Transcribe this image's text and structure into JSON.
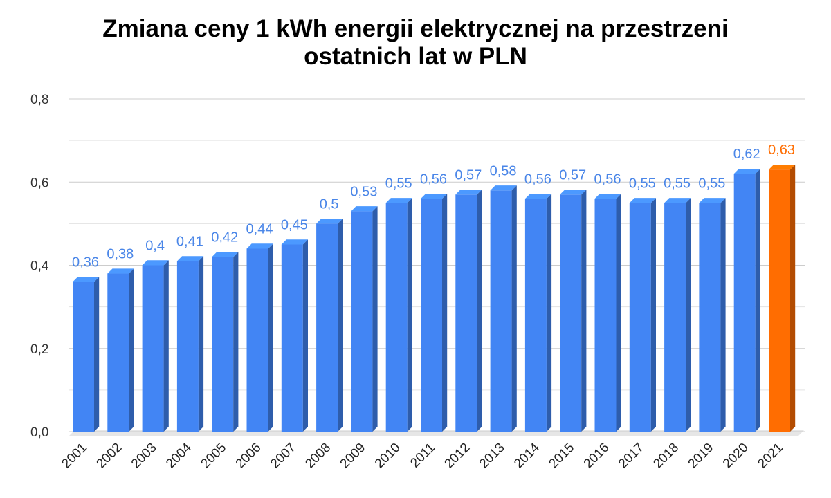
{
  "chart_data": {
    "type": "bar",
    "title": [
      "Zmiana ceny 1 kWh energii elektrycznej na przestrzeni",
      "ostatnich lat w PLN"
    ],
    "xlabel": "",
    "ylabel": "",
    "ylim": [
      0,
      0.8
    ],
    "yticks": [
      "0,0",
      "0,2",
      "0,4",
      "0,6",
      "0,8"
    ],
    "grid": true,
    "legend": "none",
    "categories": [
      "2001",
      "2002",
      "2003",
      "2004",
      "2005",
      "2006",
      "2007",
      "2008",
      "2009",
      "2010",
      "2011",
      "2012",
      "2013",
      "2014",
      "2015",
      "2016",
      "2017",
      "2018",
      "2019",
      "2020",
      "2021"
    ],
    "values": [
      0.36,
      0.38,
      0.4,
      0.41,
      0.42,
      0.44,
      0.45,
      0.5,
      0.53,
      0.55,
      0.56,
      0.57,
      0.58,
      0.56,
      0.57,
      0.56,
      0.55,
      0.55,
      0.55,
      0.62,
      0.63
    ],
    "labels": [
      "0,36",
      "0,38",
      "0,4",
      "0,41",
      "0,42",
      "0,44",
      "0,45",
      "0,5",
      "0,53",
      "0,55",
      "0,56",
      "0,57",
      "0,58",
      "0,56",
      "0,57",
      "0,56",
      "0,55",
      "0,55",
      "0,55",
      "0,62",
      "0,63"
    ],
    "colors": {
      "default": "#4285F4",
      "highlight": "#FF6D01",
      "label_default": "#4A86E8",
      "label_highlight": "#FF6D01"
    },
    "highlight_category": "2021"
  }
}
